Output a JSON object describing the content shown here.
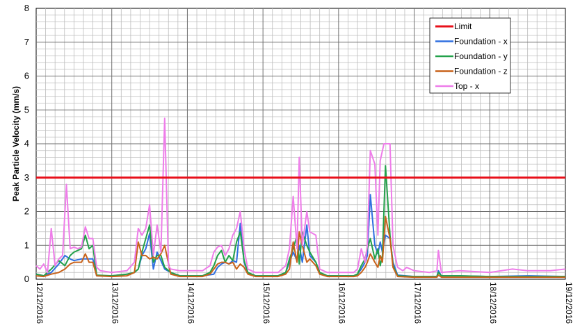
{
  "chart_data": {
    "type": "line",
    "title": "",
    "xlabel": "",
    "ylabel": "Peak Particle Velocity (mm/s)",
    "ylim": [
      0,
      8
    ],
    "yticks": [
      0,
      1,
      2,
      3,
      4,
      5,
      6,
      7,
      8
    ],
    "xlim": [
      "12/12/2016",
      "19/12/2016"
    ],
    "xticks": [
      "12/12/2016",
      "13/12/2016",
      "14/12/2016",
      "15/12/2016",
      "16/12/2016",
      "17/12/2016",
      "18/12/2016",
      "19/12/2016"
    ],
    "grid": true,
    "legend_position": "top-right",
    "limit": {
      "name": "Limit",
      "value": 3,
      "color": "#e8101a"
    },
    "series": [
      {
        "name": "Foundation - x",
        "color": "#2f6fe0",
        "points": [
          [
            0,
            0.15
          ],
          [
            0.1,
            0.1
          ],
          [
            0.2,
            0.2
          ],
          [
            0.3,
            0.45
          ],
          [
            0.38,
            0.7
          ],
          [
            0.45,
            0.6
          ],
          [
            0.5,
            0.55
          ],
          [
            0.6,
            0.6
          ],
          [
            0.7,
            0.6
          ],
          [
            0.75,
            0.6
          ],
          [
            0.8,
            0.1
          ],
          [
            1,
            0.1
          ],
          [
            1.2,
            0.15
          ],
          [
            1.3,
            0.2
          ],
          [
            1.35,
            0.3
          ],
          [
            1.4,
            0.7
          ],
          [
            1.45,
            0.9
          ],
          [
            1.5,
            1.35
          ],
          [
            1.55,
            0.3
          ],
          [
            1.6,
            0.8
          ],
          [
            1.65,
            0.55
          ],
          [
            1.7,
            0.3
          ],
          [
            1.78,
            0.2
          ],
          [
            1.9,
            0.1
          ],
          [
            2.2,
            0.1
          ],
          [
            2.35,
            0.15
          ],
          [
            2.4,
            0.35
          ],
          [
            2.45,
            0.45
          ],
          [
            2.5,
            0.5
          ],
          [
            2.55,
            0.45
          ],
          [
            2.6,
            0.55
          ],
          [
            2.65,
            0.5
          ],
          [
            2.7,
            1.65
          ],
          [
            2.75,
            0.5
          ],
          [
            2.8,
            0.2
          ],
          [
            2.9,
            0.1
          ],
          [
            3.2,
            0.1
          ],
          [
            3.3,
            0.2
          ],
          [
            3.35,
            0.5
          ],
          [
            3.4,
            0.8
          ],
          [
            3.45,
            0.55
          ],
          [
            3.48,
            1.0
          ],
          [
            3.52,
            0.5
          ],
          [
            3.58,
            1.6
          ],
          [
            3.62,
            0.7
          ],
          [
            3.7,
            0.5
          ],
          [
            3.75,
            0.2
          ],
          [
            3.85,
            0.1
          ],
          [
            4.2,
            0.1
          ],
          [
            4.25,
            0.15
          ],
          [
            4.3,
            0.3
          ],
          [
            4.35,
            0.5
          ],
          [
            4.38,
            0.7
          ],
          [
            4.42,
            2.5
          ],
          [
            4.48,
            1.0
          ],
          [
            4.52,
            0.75
          ],
          [
            4.55,
            1.1
          ],
          [
            4.58,
            0.8
          ],
          [
            4.62,
            1.3
          ],
          [
            4.68,
            1.2
          ],
          [
            4.72,
            0.5
          ],
          [
            4.78,
            0.12
          ],
          [
            5.0,
            0.08
          ],
          [
            5.3,
            0.08
          ],
          [
            5.32,
            0.25
          ],
          [
            5.36,
            0.1
          ],
          [
            5.6,
            0.1
          ],
          [
            6,
            0.08
          ],
          [
            6.5,
            0.1
          ],
          [
            7,
            0.08
          ]
        ]
      },
      {
        "name": "Foundation - y",
        "color": "#22a14a",
        "points": [
          [
            0,
            0.15
          ],
          [
            0.1,
            0.1
          ],
          [
            0.2,
            0.3
          ],
          [
            0.3,
            0.55
          ],
          [
            0.38,
            0.4
          ],
          [
            0.45,
            0.7
          ],
          [
            0.5,
            0.8
          ],
          [
            0.55,
            0.85
          ],
          [
            0.6,
            0.9
          ],
          [
            0.65,
            1.3
          ],
          [
            0.7,
            0.9
          ],
          [
            0.75,
            1.0
          ],
          [
            0.8,
            0.12
          ],
          [
            1,
            0.1
          ],
          [
            1.2,
            0.15
          ],
          [
            1.3,
            0.2
          ],
          [
            1.35,
            0.3
          ],
          [
            1.4,
            0.8
          ],
          [
            1.45,
            1.2
          ],
          [
            1.5,
            1.6
          ],
          [
            1.55,
            0.5
          ],
          [
            1.6,
            0.7
          ],
          [
            1.65,
            0.7
          ],
          [
            1.7,
            0.35
          ],
          [
            1.78,
            0.2
          ],
          [
            1.9,
            0.1
          ],
          [
            2.2,
            0.1
          ],
          [
            2.3,
            0.2
          ],
          [
            2.35,
            0.4
          ],
          [
            2.4,
            0.7
          ],
          [
            2.45,
            0.85
          ],
          [
            2.5,
            0.5
          ],
          [
            2.55,
            0.7
          ],
          [
            2.6,
            0.55
          ],
          [
            2.65,
            1.1
          ],
          [
            2.7,
            1.4
          ],
          [
            2.75,
            0.55
          ],
          [
            2.8,
            0.2
          ],
          [
            2.9,
            0.1
          ],
          [
            3.2,
            0.1
          ],
          [
            3.3,
            0.2
          ],
          [
            3.35,
            0.6
          ],
          [
            3.4,
            0.9
          ],
          [
            3.45,
            1.3
          ],
          [
            3.48,
            0.45
          ],
          [
            3.52,
            1.4
          ],
          [
            3.58,
            1.0
          ],
          [
            3.62,
            0.8
          ],
          [
            3.7,
            0.5
          ],
          [
            3.75,
            0.2
          ],
          [
            3.85,
            0.1
          ],
          [
            4.2,
            0.1
          ],
          [
            4.25,
            0.15
          ],
          [
            4.3,
            0.4
          ],
          [
            4.35,
            0.6
          ],
          [
            4.38,
            0.9
          ],
          [
            4.42,
            1.2
          ],
          [
            4.48,
            0.6
          ],
          [
            4.52,
            0.9
          ],
          [
            4.55,
            0.4
          ],
          [
            4.58,
            0.7
          ],
          [
            4.62,
            3.35
          ],
          [
            4.68,
            1.3
          ],
          [
            4.72,
            0.4
          ],
          [
            4.78,
            0.1
          ],
          [
            5.0,
            0.08
          ],
          [
            5.3,
            0.08
          ],
          [
            5.32,
            0.2
          ],
          [
            5.36,
            0.1
          ],
          [
            5.6,
            0.1
          ],
          [
            6,
            0.08
          ],
          [
            6.5,
            0.08
          ],
          [
            7,
            0.08
          ]
        ]
      },
      {
        "name": "Foundation - z",
        "color": "#c8621a",
        "points": [
          [
            0,
            0.1
          ],
          [
            0.1,
            0.08
          ],
          [
            0.2,
            0.15
          ],
          [
            0.3,
            0.2
          ],
          [
            0.38,
            0.3
          ],
          [
            0.45,
            0.45
          ],
          [
            0.5,
            0.5
          ],
          [
            0.6,
            0.5
          ],
          [
            0.65,
            0.75
          ],
          [
            0.7,
            0.5
          ],
          [
            0.75,
            0.5
          ],
          [
            0.8,
            0.1
          ],
          [
            1,
            0.08
          ],
          [
            1.2,
            0.1
          ],
          [
            1.3,
            0.2
          ],
          [
            1.35,
            1.1
          ],
          [
            1.4,
            0.7
          ],
          [
            1.45,
            0.7
          ],
          [
            1.5,
            0.6
          ],
          [
            1.55,
            0.65
          ],
          [
            1.6,
            0.6
          ],
          [
            1.65,
            0.75
          ],
          [
            1.7,
            1.0
          ],
          [
            1.78,
            0.15
          ],
          [
            1.9,
            0.08
          ],
          [
            2.2,
            0.08
          ],
          [
            2.3,
            0.15
          ],
          [
            2.35,
            0.3
          ],
          [
            2.4,
            0.45
          ],
          [
            2.45,
            0.5
          ],
          [
            2.5,
            0.5
          ],
          [
            2.55,
            0.45
          ],
          [
            2.6,
            0.5
          ],
          [
            2.65,
            0.3
          ],
          [
            2.7,
            0.45
          ],
          [
            2.75,
            0.35
          ],
          [
            2.8,
            0.15
          ],
          [
            2.9,
            0.08
          ],
          [
            3.2,
            0.08
          ],
          [
            3.3,
            0.15
          ],
          [
            3.35,
            0.3
          ],
          [
            3.4,
            1.1
          ],
          [
            3.45,
            0.5
          ],
          [
            3.48,
            1.4
          ],
          [
            3.52,
            1.0
          ],
          [
            3.58,
            0.5
          ],
          [
            3.62,
            0.6
          ],
          [
            3.7,
            0.4
          ],
          [
            3.75,
            0.15
          ],
          [
            3.85,
            0.08
          ],
          [
            4.2,
            0.08
          ],
          [
            4.25,
            0.1
          ],
          [
            4.3,
            0.2
          ],
          [
            4.35,
            0.35
          ],
          [
            4.38,
            0.5
          ],
          [
            4.42,
            0.75
          ],
          [
            4.48,
            0.5
          ],
          [
            4.52,
            0.35
          ],
          [
            4.55,
            0.7
          ],
          [
            4.58,
            0.5
          ],
          [
            4.62,
            1.85
          ],
          [
            4.68,
            1.2
          ],
          [
            4.72,
            0.35
          ],
          [
            4.78,
            0.08
          ],
          [
            5.0,
            0.06
          ],
          [
            5.3,
            0.06
          ],
          [
            5.32,
            0.12
          ],
          [
            5.36,
            0.06
          ],
          [
            6,
            0.06
          ],
          [
            7,
            0.06
          ]
        ]
      },
      {
        "name": "Top - x",
        "color": "#ee7de9",
        "points": [
          [
            0,
            0.4
          ],
          [
            0.05,
            0.3
          ],
          [
            0.1,
            0.45
          ],
          [
            0.15,
            0.2
          ],
          [
            0.2,
            1.5
          ],
          [
            0.25,
            0.4
          ],
          [
            0.3,
            0.6
          ],
          [
            0.35,
            0.7
          ],
          [
            0.4,
            2.8
          ],
          [
            0.45,
            0.9
          ],
          [
            0.5,
            0.95
          ],
          [
            0.55,
            0.9
          ],
          [
            0.6,
            0.95
          ],
          [
            0.65,
            1.55
          ],
          [
            0.7,
            1.2
          ],
          [
            0.75,
            1.2
          ],
          [
            0.8,
            0.35
          ],
          [
            0.85,
            0.25
          ],
          [
            1,
            0.2
          ],
          [
            1.2,
            0.25
          ],
          [
            1.3,
            0.5
          ],
          [
            1.35,
            1.5
          ],
          [
            1.4,
            1.3
          ],
          [
            1.45,
            1.5
          ],
          [
            1.5,
            2.2
          ],
          [
            1.55,
            0.7
          ],
          [
            1.6,
            1.6
          ],
          [
            1.65,
            0.8
          ],
          [
            1.7,
            4.75
          ],
          [
            1.75,
            0.4
          ],
          [
            1.78,
            0.3
          ],
          [
            1.9,
            0.25
          ],
          [
            2.2,
            0.25
          ],
          [
            2.3,
            0.4
          ],
          [
            2.35,
            0.8
          ],
          [
            2.4,
            0.95
          ],
          [
            2.45,
            1.0
          ],
          [
            2.5,
            0.7
          ],
          [
            2.55,
            0.9
          ],
          [
            2.6,
            1.3
          ],
          [
            2.65,
            1.5
          ],
          [
            2.7,
            2.0
          ],
          [
            2.75,
            0.9
          ],
          [
            2.8,
            0.3
          ],
          [
            2.9,
            0.2
          ],
          [
            3.2,
            0.2
          ],
          [
            3.3,
            0.4
          ],
          [
            3.35,
            0.9
          ],
          [
            3.4,
            2.45
          ],
          [
            3.45,
            0.9
          ],
          [
            3.48,
            3.6
          ],
          [
            3.52,
            1.0
          ],
          [
            3.58,
            2.0
          ],
          [
            3.62,
            1.4
          ],
          [
            3.7,
            1.3
          ],
          [
            3.75,
            0.3
          ],
          [
            3.85,
            0.2
          ],
          [
            4.2,
            0.2
          ],
          [
            4.25,
            0.3
          ],
          [
            4.3,
            0.9
          ],
          [
            4.35,
            0.5
          ],
          [
            4.38,
            1.0
          ],
          [
            4.42,
            3.8
          ],
          [
            4.48,
            3.4
          ],
          [
            4.52,
            1.3
          ],
          [
            4.55,
            3.5
          ],
          [
            4.6,
            4.0
          ],
          [
            4.68,
            4.0
          ],
          [
            4.72,
            1.0
          ],
          [
            4.78,
            0.35
          ],
          [
            4.85,
            0.25
          ],
          [
            4.9,
            0.35
          ],
          [
            5.0,
            0.25
          ],
          [
            5.2,
            0.2
          ],
          [
            5.3,
            0.25
          ],
          [
            5.32,
            0.85
          ],
          [
            5.36,
            0.2
          ],
          [
            5.6,
            0.25
          ],
          [
            6,
            0.2
          ],
          [
            6.3,
            0.3
          ],
          [
            6.5,
            0.25
          ],
          [
            6.8,
            0.25
          ],
          [
            7,
            0.3
          ]
        ]
      }
    ]
  }
}
